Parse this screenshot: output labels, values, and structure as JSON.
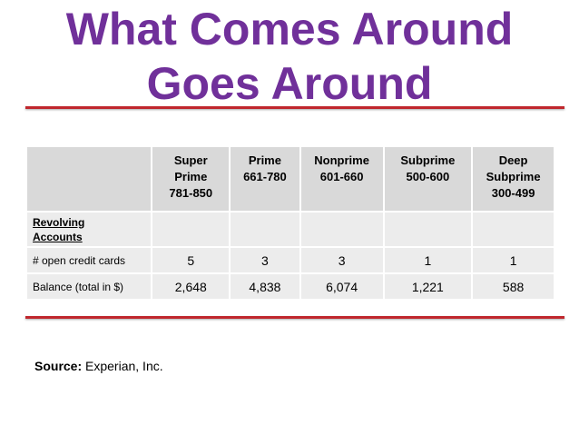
{
  "title": {
    "lines": [
      "What Comes Around",
      "Goes Around"
    ]
  },
  "table": {
    "header": [
      [
        "Super",
        "Prime",
        "781-850"
      ],
      [
        "Prime",
        "661-780"
      ],
      [
        "Nonprime",
        "601-660"
      ],
      [
        "Subprime",
        "500-600"
      ],
      [
        "Deep",
        "Subprime",
        "300-499"
      ]
    ],
    "section_label": "Revolving Accounts",
    "rows": [
      {
        "label": "# open credit cards",
        "cells": [
          "5",
          "3",
          "3",
          "1",
          "1"
        ]
      },
      {
        "label": "Balance (total in $)",
        "cells": [
          "2,648",
          "4,838",
          "6,074",
          "1,221",
          "588"
        ]
      }
    ]
  },
  "source": {
    "label": "Source:",
    "text": "Experian, Inc."
  }
}
